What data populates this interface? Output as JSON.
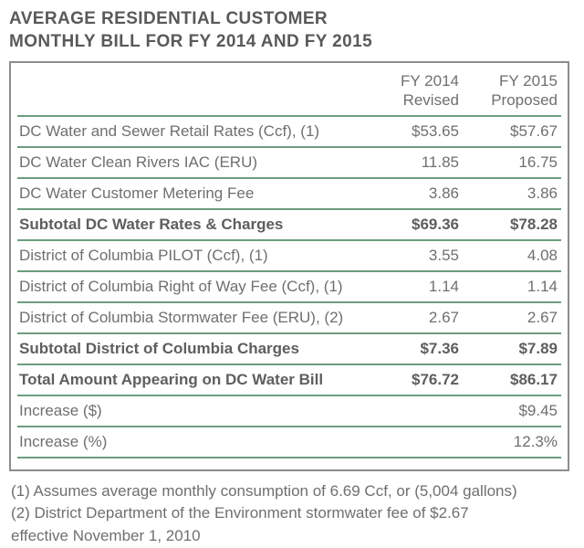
{
  "page": {
    "title_line1": "AVERAGE RESIDENTIAL CUSTOMER",
    "title_line2": "MONTHLY BILL FOR FY 2014 AND FY 2015"
  },
  "table": {
    "columns": [
      {
        "line1": "FY 2014",
        "line2": "Revised"
      },
      {
        "line1": "FY 2015",
        "line2": "Proposed"
      }
    ],
    "rows": [
      {
        "label": "DC Water and Sewer Retail Rates (Ccf), (1)",
        "fy2014": "$53.65",
        "fy2015": "$57.67",
        "emphasis": false
      },
      {
        "label": "DC Water Clean Rivers IAC (ERU)",
        "fy2014": "11.85",
        "fy2015": "16.75",
        "emphasis": false
      },
      {
        "label": "DC Water Customer Metering Fee",
        "fy2014": "3.86",
        "fy2015": "3.86",
        "emphasis": false
      },
      {
        "label": "Subtotal DC Water Rates & Charges",
        "fy2014": "$69.36",
        "fy2015": "$78.28",
        "emphasis": true
      },
      {
        "label": "District of Columbia PILOT (Ccf), (1)",
        "fy2014": "3.55",
        "fy2015": "4.08",
        "emphasis": false
      },
      {
        "label": "District of Columbia Right of Way Fee (Ccf), (1)",
        "fy2014": "1.14",
        "fy2015": "1.14",
        "emphasis": false
      },
      {
        "label": "District of Columbia Stormwater Fee (ERU), (2)",
        "fy2014": "2.67",
        "fy2015": "2.67",
        "emphasis": false
      },
      {
        "label": "Subtotal District of Columbia Charges",
        "fy2014": "$7.36",
        "fy2015": "$7.89",
        "emphasis": true
      },
      {
        "label": "Total Amount Appearing on DC Water Bill",
        "fy2014": "$76.72",
        "fy2015": "$86.17",
        "emphasis": true
      },
      {
        "label": "Increase ($)",
        "fy2014": "",
        "fy2015": "$9.45",
        "emphasis": false
      },
      {
        "label": "Increase (%)",
        "fy2014": "",
        "fy2015": "12.3%",
        "emphasis": false
      }
    ]
  },
  "footnotes": [
    "(1) Assumes average monthly consumption of 6.69 Ccf, or (5,004 gallons)",
    "(2) District Department of the Environment stormwater fee of $2.67 effective November 1, 2010"
  ],
  "colors": {
    "accent_green": "#6d9c80",
    "border_gray": "#8d8d8d",
    "text_gray": "#6f6f6f",
    "title_gray": "#58595b"
  },
  "chart_data": {
    "type": "table",
    "title": "AVERAGE RESIDENTIAL CUSTOMER MONTHLY BILL FOR FY 2014 AND FY 2015",
    "columns": [
      "FY 2014 Revised",
      "FY 2015 Proposed"
    ],
    "categories": [
      "DC Water and Sewer Retail Rates (Ccf), (1)",
      "DC Water Clean Rivers IAC (ERU)",
      "DC Water Customer Metering Fee",
      "Subtotal DC Water Rates & Charges",
      "District of Columbia PILOT (Ccf), (1)",
      "District of Columbia Right of Way Fee (Ccf), (1)",
      "District of Columbia Stormwater Fee (ERU), (2)",
      "Subtotal District of Columbia Charges",
      "Total Amount Appearing on DC Water Bill",
      "Increase ($)",
      "Increase (%)"
    ],
    "series": [
      {
        "name": "FY 2014 Revised",
        "values": [
          53.65,
          11.85,
          3.86,
          69.36,
          3.55,
          1.14,
          2.67,
          7.36,
          76.72,
          null,
          null
        ]
      },
      {
        "name": "FY 2015 Proposed",
        "values": [
          57.67,
          16.75,
          3.86,
          78.28,
          4.08,
          1.14,
          2.67,
          7.89,
          86.17,
          9.45,
          "12.3%"
        ]
      }
    ]
  }
}
